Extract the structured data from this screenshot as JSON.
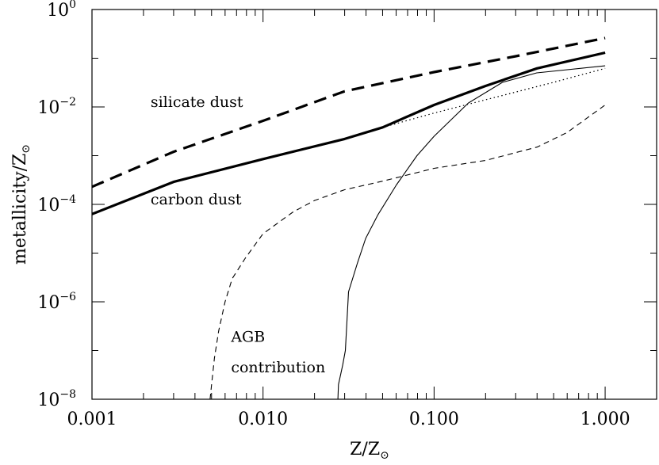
{
  "chart_data": {
    "type": "line",
    "title": "",
    "xlabel": "Z/Z",
    "xlabel_sub": "⊙",
    "ylabel": "metallicity/Z",
    "ylabel_sub": "⊙",
    "xscale": "log",
    "yscale": "log",
    "xlim": [
      0.001,
      2.0
    ],
    "ylim": [
      1e-08,
      1
    ],
    "x_ticks": [
      {
        "value": 0.001,
        "label": "0.001"
      },
      {
        "value": 0.01,
        "label": "0.010"
      },
      {
        "value": 0.1,
        "label": "0.100"
      },
      {
        "value": 1,
        "label": "1.000"
      }
    ],
    "y_ticks": [
      {
        "value": 1e-08,
        "base": "10",
        "exp": "−8"
      },
      {
        "value": 1e-06,
        "base": "10",
        "exp": "−6"
      },
      {
        "value": 0.0001,
        "base": "10",
        "exp": "−4"
      },
      {
        "value": 0.01,
        "base": "10",
        "exp": "−2"
      },
      {
        "value": 1,
        "base": "10",
        "exp": "0"
      }
    ],
    "annotations": [
      {
        "text": "silicate dust",
        "x": 0.0022,
        "y": 0.01
      },
      {
        "text": "carbon dust",
        "x": 0.0022,
        "y": 0.0001
      },
      {
        "text": "AGB",
        "x": 0.0065,
        "y": 1.5e-07
      },
      {
        "text": "contribution",
        "x": 0.0065,
        "y": 3.6e-08
      }
    ],
    "series": [
      {
        "style": "thick-dashed",
        "x": [
          0.001,
          0.003,
          0.01,
          0.03,
          0.1,
          0.3,
          1.0
        ],
        "y": [
          0.00023,
          0.0012,
          0.0052,
          0.021,
          0.052,
          0.11,
          0.26
        ]
      },
      {
        "style": "thick-solid",
        "x": [
          0.001,
          0.003,
          0.01,
          0.03,
          0.05,
          0.1,
          0.2,
          0.4,
          1.0
        ],
        "y": [
          6.3e-05,
          0.00029,
          0.00085,
          0.0022,
          0.0038,
          0.011,
          0.027,
          0.062,
          0.13
        ]
      },
      {
        "style": "dotted",
        "x": [
          0.05,
          0.1,
          0.2,
          0.5,
          1.0
        ],
        "y": [
          0.0038,
          0.0075,
          0.014,
          0.032,
          0.062
        ]
      },
      {
        "style": "thin-solid",
        "x": [
          0.0274,
          0.0276,
          0.0292,
          0.0303,
          0.0316,
          0.0355,
          0.0398,
          0.0468,
          0.0602,
          0.0794,
          0.1,
          0.1585,
          0.2512,
          0.3981,
          1.0
        ],
        "y": [
          1e-08,
          2e-08,
          5e-08,
          1e-07,
          1.6e-06,
          6e-06,
          2e-05,
          6e-05,
          0.00025,
          0.001,
          0.0025,
          0.012,
          0.032,
          0.05,
          0.07
        ]
      },
      {
        "style": "thin-dashed",
        "x": [
          0.0049,
          0.005,
          0.0052,
          0.0055,
          0.006,
          0.0066,
          0.0079,
          0.01,
          0.015,
          0.02,
          0.03,
          0.05,
          0.1,
          0.2,
          0.4,
          0.6,
          1.0
        ],
        "y": [
          1e-08,
          2e-08,
          7e-08,
          2.5e-07,
          1e-06,
          3e-06,
          8e-06,
          2.5e-05,
          7e-05,
          0.00012,
          0.0002,
          0.0003,
          0.00055,
          0.0008,
          0.0015,
          0.003,
          0.011
        ]
      }
    ]
  }
}
